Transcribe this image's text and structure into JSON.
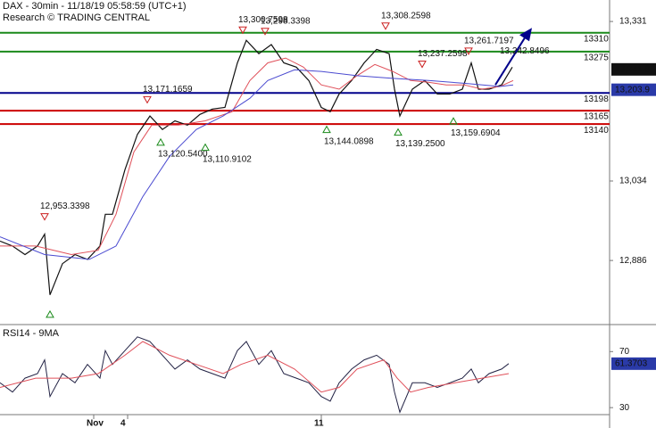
{
  "chart_data": [
    {
      "type": "line",
      "title": "DAX - 30min - 11/18/19 05:58:59 (UTC+1)",
      "subtitle": "Research © TRADING CENTRAL",
      "xlim": [
        0,
        683
      ],
      "ylim": [
        12770,
        13371
      ],
      "yticks": [
        {
          "value": 12886,
          "label": "12,886"
        },
        {
          "value": 13034,
          "label": "13,034"
        },
        {
          "value": 13331,
          "label": "13,331"
        }
      ],
      "series": [
        {
          "color": "#111111",
          "width": 1.2,
          "x": [
            0,
            14,
            28,
            42,
            50,
            56,
            70,
            84,
            98,
            112,
            118,
            126,
            140,
            154,
            168,
            182,
            196,
            210,
            224,
            238,
            252,
            266,
            276,
            290,
            304,
            318,
            332,
            346,
            360,
            370,
            380,
            394,
            408,
            422,
            436,
            442,
            448,
            462,
            476,
            490,
            504,
            518,
            528,
            536,
            548,
            562,
            574
          ],
          "values": [
            12922,
            12913,
            12897,
            12913,
            12935,
            12822,
            12880,
            12897,
            12888,
            12913,
            12972,
            12972,
            13055,
            13121,
            13155,
            13130,
            13146,
            13138,
            13158,
            13168,
            13171,
            13254,
            13296,
            13271,
            13288,
            13254,
            13246,
            13221,
            13171,
            13163,
            13196,
            13221,
            13254,
            13279,
            13271,
            13205,
            13155,
            13205,
            13221,
            13196,
            13196,
            13205,
            13254,
            13205,
            13205,
            13213,
            13246
          ]
        },
        {
          "color": "#e0505a",
          "width": 1,
          "x": [
            0,
            40,
            80,
            110,
            130,
            150,
            170,
            200,
            230,
            260,
            280,
            300,
            320,
            340,
            360,
            380,
            400,
            420,
            440,
            460,
            480,
            500,
            520,
            540,
            560,
            575
          ],
          "values": [
            12913,
            12913,
            12897,
            12905,
            12972,
            13088,
            13138,
            13138,
            13146,
            13163,
            13221,
            13254,
            13263,
            13246,
            13213,
            13205,
            13230,
            13251,
            13238,
            13221,
            13218,
            13213,
            13213,
            13205,
            13210,
            13221
          ]
        },
        {
          "color": "#4a4ad0",
          "width": 1,
          "x": [
            0,
            50,
            100,
            130,
            160,
            190,
            220,
            250,
            280,
            300,
            330,
            360,
            400,
            440,
            480,
            520,
            560,
            575
          ],
          "values": [
            12930,
            12897,
            12888,
            12913,
            13005,
            13080,
            13130,
            13155,
            13188,
            13221,
            13241,
            13238,
            13230,
            13225,
            13221,
            13216,
            13210,
            13213
          ]
        }
      ],
      "levels": [
        {
          "value": 13310,
          "color": "#1a8a1a"
        },
        {
          "value": 13275,
          "color": "#1a8a1a"
        },
        {
          "value": 13198,
          "color": "#00008b"
        },
        {
          "value": 13165,
          "color": "#cc0000"
        },
        {
          "value": 13140,
          "color": "#cc0000"
        }
      ],
      "annotations": [
        {
          "x": 50,
          "value": 12953.3398,
          "label": "12,953.3398",
          "kind": "high"
        },
        {
          "x": 56,
          "value": 12800,
          "label": null,
          "kind": "low"
        },
        {
          "x": 165,
          "value": 13171.1659,
          "label": "13,171.1659",
          "kind": "high"
        },
        {
          "x": 180,
          "value": 13120.54,
          "label": "13,120.5400",
          "kind": "low"
        },
        {
          "x": 230,
          "value": 13110.9102,
          "label": "13,110.9102",
          "kind": "low"
        },
        {
          "x": 272,
          "value": 13300.7598,
          "label": "13,300.7598",
          "kind": "high"
        },
        {
          "x": 297,
          "value": 13298.3398,
          "label": "13,298.3398",
          "kind": "high"
        },
        {
          "x": 366,
          "value": 13144.0898,
          "label": "13,144.0898",
          "kind": "low"
        },
        {
          "x": 432,
          "value": 13308.2598,
          "label": "13,308.2598",
          "kind": "high"
        },
        {
          "x": 446,
          "value": 13139.25,
          "label": "13,139.2500",
          "kind": "low"
        },
        {
          "x": 473,
          "value": 13237.2598,
          "label": "13,237.2598",
          "kind": "high"
        },
        {
          "x": 508,
          "value": 13159.6904,
          "label": "13,159.6904",
          "kind": "low"
        },
        {
          "x": 525,
          "value": 13261.7197,
          "label": "13,261.7197",
          "kind": "high"
        },
        {
          "x": 560,
          "value": 13242.8496,
          "label": "13,242.8496",
          "kind": "target"
        }
      ],
      "price_tags": [
        {
          "value": 13241.8,
          "label": "13,241.8",
          "color": "#111111"
        },
        {
          "value": 13203.9,
          "label": "13,203.9",
          "color": "#2a3aa8"
        }
      ]
    },
    {
      "type": "line",
      "title": "RSI14 - 9MA",
      "xlim": [
        0,
        683
      ],
      "ylim": [
        25,
        88
      ],
      "yticks": [
        30,
        70
      ],
      "xticks": [
        {
          "value": 105,
          "label": "Nov"
        },
        {
          "value": 143,
          "label": "4"
        },
        {
          "value": 360,
          "label": "11"
        }
      ],
      "series": [
        {
          "color": "#222244",
          "width": 1,
          "x": [
            0,
            14,
            28,
            42,
            50,
            56,
            70,
            84,
            98,
            112,
            118,
            126,
            140,
            154,
            168,
            182,
            196,
            210,
            224,
            238,
            252,
            266,
            276,
            290,
            304,
            318,
            332,
            346,
            360,
            370,
            380,
            394,
            408,
            422,
            436,
            442,
            448,
            462,
            476,
            490,
            504,
            518,
            528,
            536,
            548,
            562,
            570
          ],
          "values": [
            47.7,
            41.1,
            51.0,
            54.3,
            64.1,
            37.9,
            54.3,
            47.7,
            60.8,
            51.0,
            70.7,
            60.8,
            70.7,
            80.5,
            77.2,
            67.4,
            57.5,
            64.1,
            57.5,
            54.3,
            51.0,
            70.7,
            77.2,
            60.8,
            70.7,
            54.3,
            51.0,
            47.7,
            37.9,
            34.6,
            47.7,
            57.5,
            64.1,
            67.4,
            60.8,
            41.1,
            26.7,
            47.7,
            47.7,
            44.4,
            47.7,
            51.0,
            57.5,
            47.7,
            54.3,
            57.5,
            61.3703
          ]
        },
        {
          "color": "#e0505a",
          "width": 1,
          "x": [
            0,
            40,
            80,
            110,
            140,
            160,
            190,
            220,
            250,
            270,
            300,
            330,
            360,
            380,
            400,
            430,
            445,
            460,
            480,
            510,
            540,
            570
          ],
          "values": [
            44.4,
            51.0,
            51.0,
            54.3,
            67.4,
            77.2,
            67.4,
            60.8,
            54.3,
            60.8,
            67.4,
            57.5,
            41.1,
            44.4,
            57.5,
            64.1,
            51.0,
            41.1,
            44.4,
            47.7,
            51.0,
            54.3
          ]
        }
      ],
      "price_tags": [
        {
          "value": 61.3703,
          "label": "61.3703",
          "color": "#2a3aa8"
        }
      ]
    }
  ]
}
